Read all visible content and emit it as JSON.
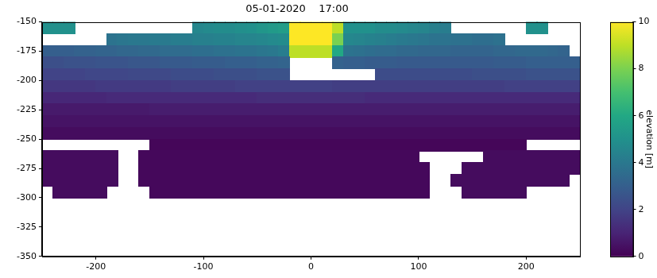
{
  "chart_data": {
    "type": "heatmap",
    "title": "05-01-2020    17:00",
    "x": [
      -245,
      -235,
      -225,
      -215,
      -205,
      -195,
      -185,
      -175,
      -165,
      -155,
      -145,
      -135,
      -125,
      -115,
      -105,
      -95,
      -85,
      -75,
      -65,
      -55,
      -45,
      -35,
      -25,
      -15,
      -5,
      5,
      15,
      25,
      35,
      45,
      55,
      65,
      75,
      85,
      95,
      105,
      115,
      125,
      135,
      145,
      155,
      165,
      175,
      185,
      195,
      205,
      215,
      225,
      235,
      245
    ],
    "y": [
      -155,
      -165,
      -175,
      -185,
      -195,
      -205,
      -215,
      -225,
      -235,
      -245,
      -255,
      -265,
      -275,
      -285,
      -295
    ],
    "cells": [
      [
        5,
        5,
        5,
        null,
        null,
        null,
        null,
        null,
        null,
        null,
        null,
        null,
        null,
        null,
        4.6,
        4.7,
        4.8,
        4.8,
        4.9,
        5,
        5.2,
        5.4,
        5.5,
        10,
        10,
        10,
        10,
        9,
        5,
        5,
        5,
        4.8,
        4.8,
        4.7,
        4.6,
        4.5,
        4.3,
        4.2,
        null,
        null,
        null,
        null,
        null,
        null,
        null,
        5,
        5,
        null,
        null,
        null
      ],
      [
        null,
        null,
        null,
        null,
        null,
        null,
        3.8,
        3.9,
        4,
        4,
        4.1,
        4.1,
        4.2,
        4.2,
        4.3,
        4.3,
        4.4,
        4.4,
        4.5,
        4.5,
        4.6,
        4.7,
        4.8,
        10,
        10,
        10,
        10,
        8,
        4.6,
        4.5,
        4.4,
        4.3,
        4.2,
        4.1,
        4,
        3.9,
        3.8,
        3.8,
        3.7,
        3.7,
        3.6,
        3.6,
        3.7,
        null,
        null,
        null,
        null,
        null,
        null,
        null
      ],
      [
        3,
        3,
        3,
        3.1,
        3.1,
        3.2,
        3.2,
        3.3,
        3.3,
        3.4,
        3.4,
        3.5,
        3.5,
        3.5,
        3.6,
        3.6,
        3.7,
        3.7,
        3.8,
        3.8,
        3.9,
        4,
        4.2,
        9,
        9,
        9,
        9,
        6,
        3.8,
        3.7,
        3.6,
        3.5,
        3.5,
        3.4,
        3.4,
        3.3,
        3.3,
        3.3,
        3.2,
        3.2,
        3.2,
        3.2,
        3.3,
        3.3,
        3.4,
        3.4,
        3.4,
        3.3,
        3.2,
        null
      ],
      [
        2.4,
        2.4,
        2.5,
        2.5,
        2.5,
        2.6,
        2.6,
        2.6,
        2.7,
        2.7,
        2.7,
        2.8,
        2.8,
        2.8,
        2.9,
        2.9,
        2.9,
        3,
        3,
        3,
        3.1,
        3.1,
        3.2,
        null,
        null,
        null,
        null,
        3.1,
        3,
        3,
        2.9,
        2.9,
        2.9,
        2.8,
        2.8,
        2.8,
        2.8,
        2.8,
        2.8,
        2.8,
        2.8,
        2.8,
        2.9,
        2.9,
        2.9,
        3,
        3,
        3,
        3,
        3
      ],
      [
        2,
        2,
        2,
        2,
        2.1,
        2.1,
        2.1,
        2.1,
        2.2,
        2.2,
        2.2,
        2.2,
        2.3,
        2.3,
        2.3,
        2.3,
        2.4,
        2.4,
        2.4,
        2.4,
        2.5,
        2.5,
        2.5,
        null,
        null,
        null,
        null,
        null,
        null,
        null,
        null,
        2.3,
        2.3,
        2.3,
        2.3,
        2.3,
        2.3,
        2.3,
        2.3,
        2.3,
        2.4,
        2.4,
        2.4,
        2.4,
        2.4,
        2.5,
        2.5,
        2.5,
        2.5,
        2.5
      ],
      [
        1.6,
        1.6,
        1.6,
        1.6,
        1.6,
        1.7,
        1.7,
        1.7,
        1.7,
        1.7,
        1.7,
        1.7,
        1.8,
        1.8,
        1.8,
        1.8,
        1.8,
        1.8,
        1.9,
        1.9,
        1.9,
        1.9,
        1.9,
        1.9,
        1.9,
        1.9,
        1.9,
        1.8,
        1.8,
        1.8,
        1.8,
        1.8,
        1.8,
        1.8,
        1.8,
        1.8,
        1.8,
        1.8,
        1.8,
        1.8,
        1.8,
        1.8,
        1.8,
        1.9,
        1.9,
        1.9,
        1.9,
        1.9,
        1.9,
        1.9
      ],
      [
        1.1,
        1.1,
        1.1,
        1.1,
        1.1,
        1.1,
        1.2,
        1.2,
        1.2,
        1.2,
        1.2,
        1.2,
        1.2,
        1.2,
        1.2,
        1.2,
        1.2,
        1.2,
        1.2,
        1.2,
        1.3,
        1.3,
        1.3,
        1.3,
        1.3,
        1.3,
        1.3,
        1.3,
        1.3,
        1.3,
        1.2,
        1.2,
        1.2,
        1.2,
        1.2,
        1.2,
        1.2,
        1.2,
        1.2,
        1.2,
        1.2,
        1.2,
        1.2,
        1.2,
        1.2,
        1.2,
        1.2,
        1.2,
        1.2,
        1.2
      ],
      [
        0.7,
        0.7,
        0.7,
        0.7,
        0.7,
        0.7,
        0.7,
        0.7,
        0.7,
        0.7,
        0.8,
        0.8,
        0.8,
        0.8,
        0.8,
        0.8,
        0.8,
        0.8,
        0.8,
        0.8,
        0.8,
        0.8,
        0.8,
        0.8,
        0.8,
        0.8,
        0.8,
        0.8,
        0.8,
        0.8,
        0.8,
        0.8,
        0.8,
        0.8,
        0.8,
        0.8,
        0.8,
        0.8,
        0.8,
        0.8,
        0.8,
        0.8,
        0.8,
        0.8,
        0.8,
        0.8,
        0.8,
        0.8,
        0.8,
        0.8
      ],
      [
        0.5,
        0.5,
        0.5,
        0.5,
        0.5,
        0.5,
        0.5,
        0.5,
        0.5,
        0.5,
        0.5,
        0.5,
        0.5,
        0.5,
        0.5,
        0.5,
        0.5,
        0.5,
        0.5,
        0.5,
        0.5,
        0.5,
        0.5,
        0.5,
        0.5,
        0.5,
        0.5,
        0.5,
        0.5,
        0.5,
        0.5,
        0.5,
        0.5,
        0.5,
        0.5,
        0.5,
        0.5,
        0.5,
        0.5,
        0.5,
        0.5,
        0.5,
        0.5,
        0.5,
        0.5,
        0.5,
        0.5,
        0.5,
        0.5,
        0.5
      ],
      [
        0.3,
        0.3,
        0.3,
        0.3,
        0.3,
        0.3,
        0.3,
        0.3,
        0.3,
        0.3,
        0.3,
        0.3,
        0.3,
        0.3,
        0.3,
        0.3,
        0.3,
        0.3,
        0.3,
        0.3,
        0.3,
        0.3,
        0.3,
        0.3,
        0.3,
        0.3,
        0.3,
        0.3,
        0.3,
        0.3,
        0.3,
        0.3,
        0.3,
        0.3,
        0.3,
        0.3,
        0.3,
        0.3,
        0.3,
        0.3,
        0.3,
        0.3,
        0.3,
        0.3,
        0.3,
        0.3,
        0.3,
        0.3,
        0.3,
        0.3
      ],
      [
        null,
        null,
        null,
        null,
        null,
        null,
        null,
        null,
        null,
        null,
        0.15,
        0.15,
        0.15,
        0.15,
        0.15,
        0.15,
        0.15,
        0.15,
        0.15,
        0.15,
        0.15,
        0.15,
        0.15,
        0.15,
        0.15,
        0.15,
        0.15,
        0.15,
        0.15,
        0.15,
        0.15,
        0.15,
        0.15,
        0.15,
        0.15,
        0.15,
        0.15,
        0.15,
        0.15,
        0.15,
        0.15,
        0.15,
        0.15,
        0.15,
        0.15,
        null,
        null,
        null,
        null,
        null
      ],
      [
        0.3,
        0.3,
        0.3,
        0.3,
        0.3,
        0.3,
        0.3,
        null,
        null,
        0.2,
        0.2,
        0.2,
        0.2,
        0.2,
        0.2,
        0.2,
        0.2,
        0.2,
        0.2,
        0.2,
        0.2,
        0.2,
        0.2,
        0.2,
        0.2,
        0.2,
        0.2,
        0.2,
        0.2,
        0.2,
        0.2,
        0.2,
        0.2,
        0.2,
        0.2,
        null,
        null,
        null,
        null,
        null,
        null,
        0.3,
        0.3,
        0.3,
        0.3,
        0.3,
        0.3,
        0.3,
        0.3,
        0.3
      ],
      [
        0.3,
        0.3,
        0.3,
        0.3,
        0.3,
        0.3,
        0.3,
        null,
        null,
        0.2,
        0.2,
        0.2,
        0.2,
        0.2,
        0.2,
        0.2,
        0.2,
        0.2,
        0.2,
        0.2,
        0.2,
        0.2,
        0.2,
        0.2,
        0.2,
        0.2,
        0.2,
        0.2,
        0.2,
        0.2,
        0.2,
        0.2,
        0.2,
        0.2,
        0.2,
        0.2,
        null,
        null,
        null,
        0.3,
        0.3,
        0.3,
        0.3,
        0.3,
        0.3,
        0.3,
        0.3,
        0.3,
        0.3,
        0.3
      ],
      [
        0.3,
        0.3,
        0.3,
        0.3,
        0.3,
        0.3,
        0.3,
        null,
        null,
        0.2,
        0.2,
        0.2,
        0.2,
        0.2,
        0.2,
        0.2,
        0.2,
        0.2,
        0.2,
        0.2,
        0.2,
        0.2,
        0.2,
        0.2,
        0.2,
        0.2,
        0.2,
        0.2,
        0.2,
        0.2,
        0.2,
        0.2,
        0.2,
        0.2,
        0.2,
        0.2,
        null,
        null,
        0.3,
        0.3,
        0.3,
        0.3,
        0.3,
        0.3,
        0.3,
        0.3,
        0.3,
        0.3,
        0.3,
        null
      ],
      [
        null,
        0.3,
        0.3,
        0.3,
        0.3,
        0.3,
        null,
        null,
        null,
        null,
        0.2,
        0.2,
        0.2,
        0.2,
        0.2,
        0.2,
        0.2,
        0.2,
        0.2,
        0.2,
        0.2,
        0.2,
        0.2,
        0.2,
        0.2,
        0.2,
        0.2,
        0.2,
        0.2,
        0.2,
        0.2,
        0.2,
        0.2,
        0.2,
        0.2,
        0.2,
        null,
        null,
        null,
        0.3,
        0.3,
        0.3,
        0.3,
        0.3,
        0.3,
        null,
        null,
        null,
        null,
        null
      ]
    ],
    "xlim": [
      -250,
      250
    ],
    "xticks": [
      -200,
      -100,
      0,
      100,
      200
    ],
    "ylim": [
      -350,
      -150
    ],
    "yticks": [
      -350,
      -325,
      -300,
      -275,
      -250,
      -225,
      -200,
      -175,
      -150
    ],
    "colorbar": {
      "label": "elevation [m]",
      "range": [
        0,
        10
      ],
      "ticks": [
        0,
        2,
        4,
        6,
        8,
        10
      ]
    },
    "grid": false
  }
}
